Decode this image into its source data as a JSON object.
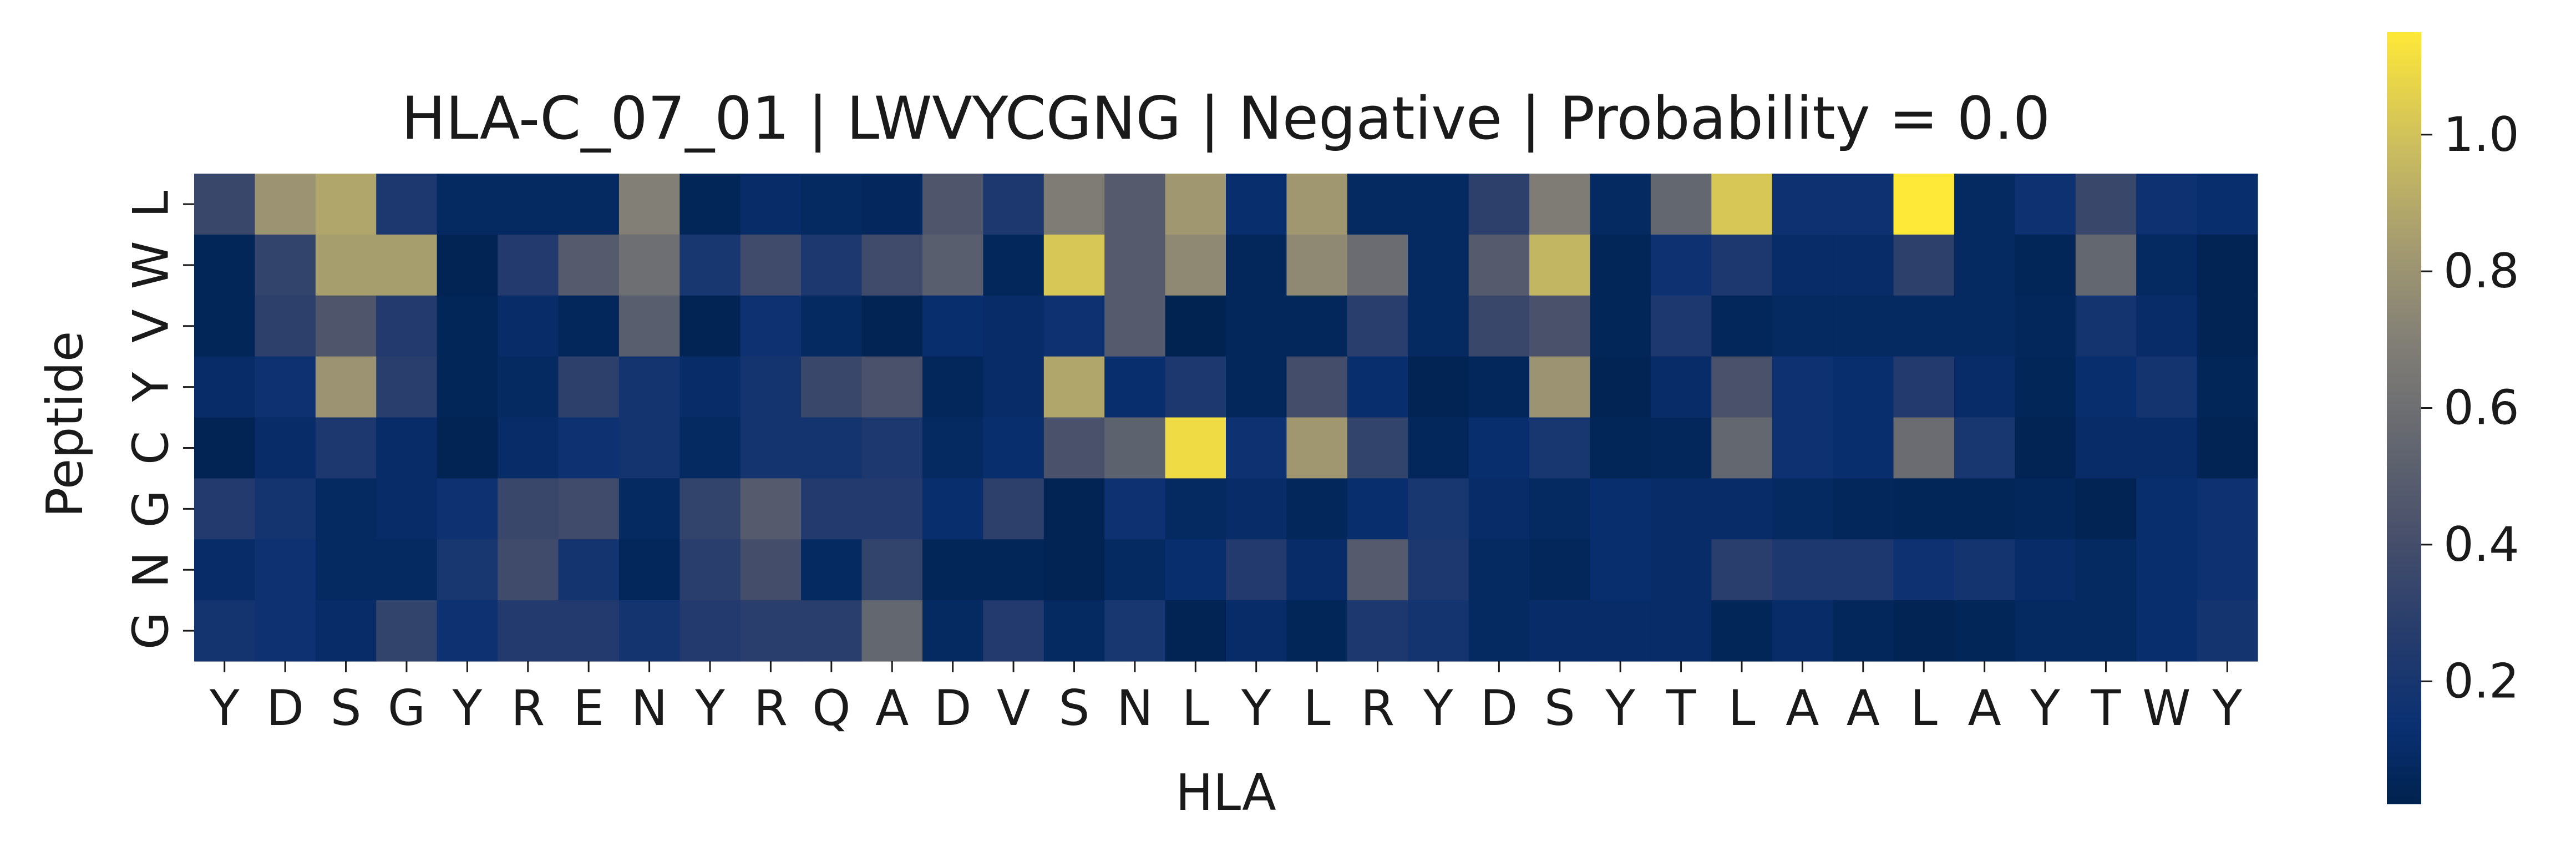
{
  "chart_data": {
    "type": "heatmap",
    "title": "HLA-C_07_01 | LWVYCGNG | Negative | Probability = 0.0",
    "xlabel": "HLA",
    "ylabel": "Peptide",
    "x_categories": [
      "Y",
      "D",
      "S",
      "G",
      "Y",
      "R",
      "E",
      "N",
      "Y",
      "R",
      "Q",
      "A",
      "D",
      "V",
      "S",
      "N",
      "L",
      "Y",
      "L",
      "R",
      "Y",
      "D",
      "S",
      "Y",
      "T",
      "L",
      "A",
      "A",
      "L",
      "A",
      "Y",
      "T",
      "W",
      "Y"
    ],
    "y_categories": [
      "L",
      "W",
      "V",
      "Y",
      "C",
      "G",
      "N",
      "G"
    ],
    "colormap": "cividis",
    "colorbar": {
      "range": [
        0.02,
        1.15
      ],
      "ticks": [
        0.2,
        0.4,
        0.6,
        0.8,
        1.0
      ],
      "tick_labels": [
        "0.2",
        "0.4",
        "0.6",
        "0.8",
        "1.0"
      ]
    },
    "values": [
      [
        0.35,
        0.8,
        0.88,
        0.22,
        0.08,
        0.08,
        0.08,
        0.7,
        0.05,
        0.1,
        0.08,
        0.07,
        0.45,
        0.22,
        0.68,
        0.48,
        0.82,
        0.12,
        0.82,
        0.08,
        0.08,
        0.3,
        0.68,
        0.08,
        0.55,
        1.02,
        0.15,
        0.15,
        1.15,
        0.08,
        0.15,
        0.35,
        0.15,
        0.12
      ],
      [
        0.05,
        0.32,
        0.85,
        0.85,
        0.04,
        0.25,
        0.48,
        0.6,
        0.2,
        0.38,
        0.22,
        0.38,
        0.5,
        0.06,
        1.02,
        0.48,
        0.75,
        0.06,
        0.75,
        0.58,
        0.08,
        0.48,
        0.95,
        0.05,
        0.15,
        0.22,
        0.1,
        0.1,
        0.3,
        0.08,
        0.05,
        0.55,
        0.08,
        0.04
      ],
      [
        0.05,
        0.3,
        0.45,
        0.25,
        0.05,
        0.1,
        0.06,
        0.5,
        0.04,
        0.15,
        0.08,
        0.04,
        0.12,
        0.1,
        0.15,
        0.48,
        0.03,
        0.06,
        0.06,
        0.28,
        0.08,
        0.35,
        0.42,
        0.05,
        0.22,
        0.06,
        0.08,
        0.08,
        0.08,
        0.08,
        0.06,
        0.18,
        0.1,
        0.04
      ],
      [
        0.1,
        0.15,
        0.8,
        0.28,
        0.05,
        0.08,
        0.3,
        0.18,
        0.1,
        0.18,
        0.35,
        0.42,
        0.06,
        0.1,
        0.88,
        0.12,
        0.22,
        0.06,
        0.4,
        0.12,
        0.04,
        0.06,
        0.8,
        0.04,
        0.1,
        0.42,
        0.15,
        0.12,
        0.25,
        0.1,
        0.05,
        0.12,
        0.18,
        0.05
      ],
      [
        0.04,
        0.1,
        0.22,
        0.1,
        0.04,
        0.1,
        0.15,
        0.18,
        0.08,
        0.18,
        0.18,
        0.22,
        0.08,
        0.12,
        0.42,
        0.52,
        1.1,
        0.15,
        0.82,
        0.32,
        0.06,
        0.12,
        0.2,
        0.05,
        0.06,
        0.55,
        0.15,
        0.12,
        0.58,
        0.2,
        0.04,
        0.1,
        0.1,
        0.04
      ],
      [
        0.25,
        0.18,
        0.08,
        0.1,
        0.15,
        0.35,
        0.38,
        0.08,
        0.32,
        0.48,
        0.25,
        0.25,
        0.12,
        0.3,
        0.04,
        0.15,
        0.08,
        0.1,
        0.06,
        0.12,
        0.2,
        0.1,
        0.08,
        0.12,
        0.1,
        0.1,
        0.08,
        0.06,
        0.05,
        0.05,
        0.06,
        0.04,
        0.12,
        0.15
      ],
      [
        0.1,
        0.15,
        0.08,
        0.08,
        0.2,
        0.38,
        0.18,
        0.06,
        0.28,
        0.4,
        0.08,
        0.32,
        0.05,
        0.05,
        0.04,
        0.08,
        0.12,
        0.25,
        0.1,
        0.48,
        0.22,
        0.08,
        0.06,
        0.12,
        0.1,
        0.28,
        0.22,
        0.22,
        0.15,
        0.18,
        0.1,
        0.08,
        0.12,
        0.15
      ],
      [
        0.18,
        0.15,
        0.1,
        0.32,
        0.15,
        0.25,
        0.25,
        0.18,
        0.25,
        0.28,
        0.28,
        0.55,
        0.08,
        0.25,
        0.08,
        0.2,
        0.04,
        0.1,
        0.05,
        0.22,
        0.18,
        0.08,
        0.1,
        0.1,
        0.1,
        0.05,
        0.1,
        0.06,
        0.04,
        0.05,
        0.08,
        0.08,
        0.12,
        0.18
      ]
    ]
  }
}
